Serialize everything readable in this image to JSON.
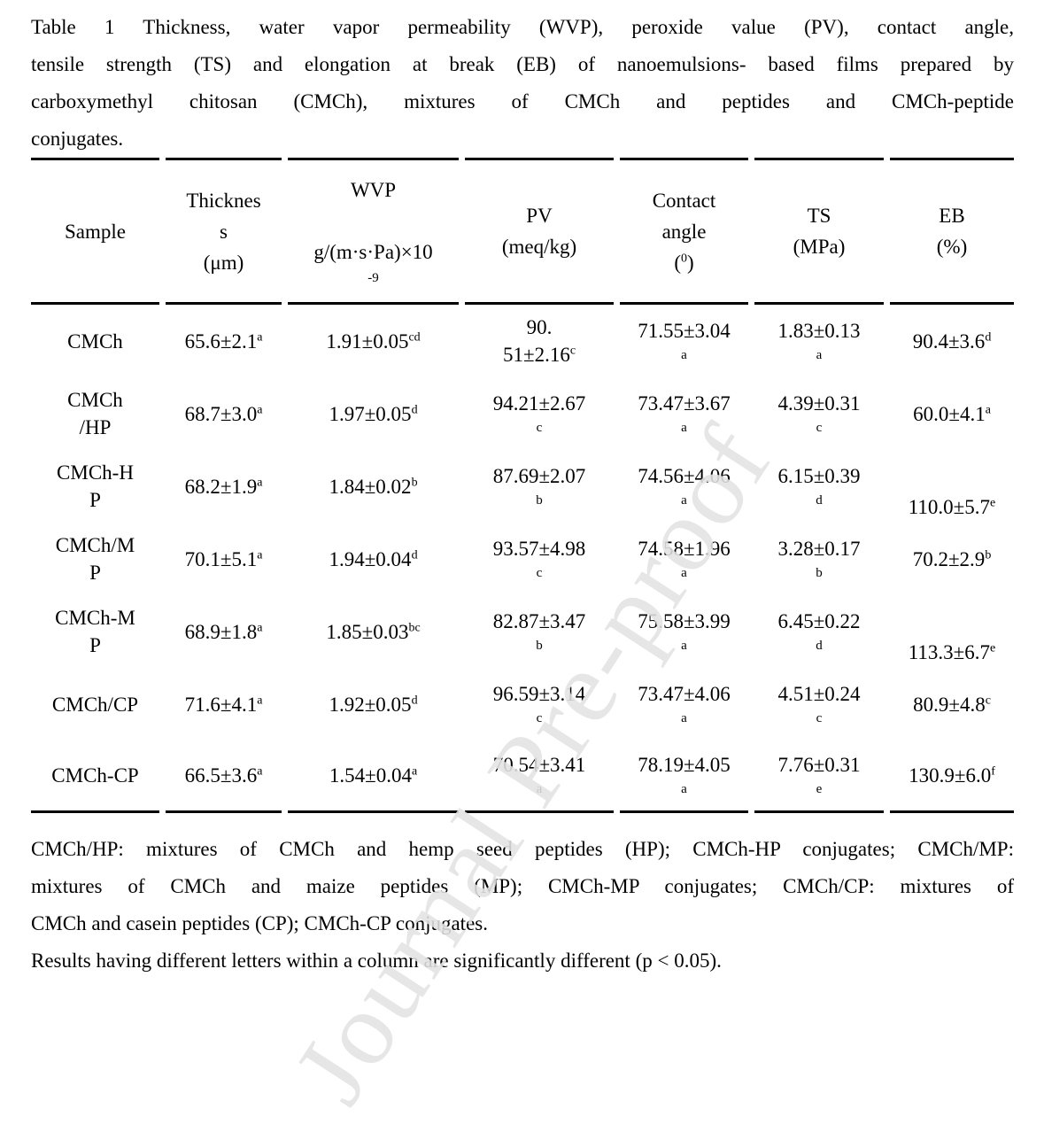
{
  "watermark": {
    "text": "Journal Pre-proof",
    "color": "#e2e2e2"
  },
  "caption": {
    "lines": [
      "Table 1 Thickness, water vapor permeability (WVP), peroxide value (PV), contact angle,",
      "tensile strength (TS) and elongation at break (EB) of nanoemulsions- based films prepared by",
      "carboxymethyl chitosan (CMCh), mixtures of CMCh and peptides and CMCh-peptide",
      "conjugates."
    ]
  },
  "table": {
    "columns": [
      {
        "name": "sample",
        "lines": [
          {
            "t": "Sample"
          }
        ]
      },
      {
        "name": "thickness",
        "lines": [
          {
            "t": "Thicknes"
          },
          {
            "t": "s"
          },
          {
            "t": "(μm)"
          }
        ]
      },
      {
        "name": "wvp",
        "lines": [
          {
            "t": "WVP"
          },
          {
            "t": " "
          },
          {
            "t": "g/(m·s·Pa)×10"
          },
          {
            "small": "-9"
          }
        ]
      },
      {
        "name": "pv",
        "lines": [
          {
            "t": "PV"
          },
          {
            "t": "(meq/kg)"
          }
        ]
      },
      {
        "name": "contact-angle",
        "lines": [
          {
            "t": "Contact"
          },
          {
            "t": "angle"
          },
          {
            "t": "(",
            "s": "0",
            "t2": ")"
          }
        ]
      },
      {
        "name": "ts",
        "lines": [
          {
            "t": "TS"
          },
          {
            "t": "(MPa)"
          }
        ]
      },
      {
        "name": "eb",
        "lines": [
          {
            "t": "EB"
          },
          {
            "t": "(%)"
          }
        ]
      }
    ],
    "rows": [
      {
        "cells": [
          {
            "lines": [
              {
                "t": "CMCh"
              }
            ]
          },
          {
            "lines": [
              {
                "t": "65.6±2.1",
                "s": "a"
              }
            ]
          },
          {
            "lines": [
              {
                "t": "1.91±0.05",
                "s": "cd"
              }
            ]
          },
          {
            "lines": [
              {
                "t": "90."
              },
              {
                "t": "51±2.16",
                "s": "c"
              }
            ]
          },
          {
            "lines": [
              {
                "t": "71.55±3.04"
              },
              {
                "small": "a"
              }
            ]
          },
          {
            "lines": [
              {
                "t": "1.83±0.13"
              },
              {
                "small": "a"
              }
            ]
          },
          {
            "lines": [
              {
                "t": "90.4±3.6",
                "s": "d"
              }
            ]
          }
        ]
      },
      {
        "cells": [
          {
            "lines": [
              {
                "t": "CMCh"
              },
              {
                "t": "/HP"
              }
            ]
          },
          {
            "lines": [
              {
                "t": "68.7±3.0",
                "s": "a"
              }
            ]
          },
          {
            "lines": [
              {
                "t": "1.97±0.05",
                "s": "d"
              }
            ]
          },
          {
            "lines": [
              {
                "t": "94.21±2.67"
              },
              {
                "small": "c"
              }
            ]
          },
          {
            "lines": [
              {
                "t": "73.47±3.67"
              },
              {
                "small": "a"
              }
            ]
          },
          {
            "lines": [
              {
                "t": "4.39±0.31"
              },
              {
                "small": "c"
              }
            ]
          },
          {
            "lines": [
              {
                "t": "60.0±4.1",
                "s": "a"
              }
            ]
          }
        ]
      },
      {
        "cells": [
          {
            "lines": [
              {
                "t": "CMCh-H"
              },
              {
                "t": "P"
              }
            ]
          },
          {
            "lines": [
              {
                "t": "68.2±1.9",
                "s": "a"
              }
            ]
          },
          {
            "lines": [
              {
                "t": "1.84±0.02",
                "s": "b"
              }
            ]
          },
          {
            "lines": [
              {
                "t": "87.69±2.07"
              },
              {
                "small": "b"
              }
            ]
          },
          {
            "lines": [
              {
                "t": "74.56±4.06"
              },
              {
                "small": "a"
              }
            ]
          },
          {
            "lines": [
              {
                "t": "6.15±0.39"
              },
              {
                "small": "d"
              }
            ]
          },
          {
            "align": "end",
            "lines": [
              {
                "t": "110.0±5.7",
                "s": "e"
              }
            ]
          }
        ]
      },
      {
        "cells": [
          {
            "lines": [
              {
                "t": "CMCh/M"
              },
              {
                "t": "P"
              }
            ]
          },
          {
            "lines": [
              {
                "t": "70.1±5.1",
                "s": "a"
              }
            ]
          },
          {
            "lines": [
              {
                "t": "1.94±0.04",
                "s": "d"
              }
            ]
          },
          {
            "lines": [
              {
                "t": "93.57±4.98"
              },
              {
                "small": "c"
              }
            ]
          },
          {
            "lines": [
              {
                "t": "74.58±1.96"
              },
              {
                "small": "a"
              }
            ]
          },
          {
            "lines": [
              {
                "t": "3.28±0.17"
              },
              {
                "small": "b"
              }
            ]
          },
          {
            "lines": [
              {
                "t": "70.2±2.9",
                "s": "b"
              }
            ]
          }
        ]
      },
      {
        "cells": [
          {
            "lines": [
              {
                "t": "CMCh-M"
              },
              {
                "t": "P"
              }
            ]
          },
          {
            "lines": [
              {
                "t": "68.9±1.8",
                "s": "a"
              }
            ]
          },
          {
            "lines": [
              {
                "t": "1.85±0.03",
                "s": "bc"
              }
            ]
          },
          {
            "lines": [
              {
                "t": "82.87±3.47"
              },
              {
                "small": "b"
              }
            ]
          },
          {
            "lines": [
              {
                "t": "75.58±3.99"
              },
              {
                "small": "a"
              }
            ]
          },
          {
            "lines": [
              {
                "t": "6.45±0.22"
              },
              {
                "small": "d"
              }
            ]
          },
          {
            "align": "end",
            "lines": [
              {
                "t": "113.3±6.7",
                "s": "e"
              }
            ]
          }
        ]
      },
      {
        "cells": [
          {
            "lines": [
              {
                "t": "CMCh/CP"
              }
            ]
          },
          {
            "lines": [
              {
                "t": "71.6±4.1",
                "s": "a"
              }
            ]
          },
          {
            "lines": [
              {
                "t": "1.92±0.05",
                "s": "d"
              }
            ]
          },
          {
            "lines": [
              {
                "t": "96.59±3.14"
              },
              {
                "small": "c"
              }
            ]
          },
          {
            "lines": [
              {
                "t": "73.47±4.06"
              },
              {
                "small": "a"
              }
            ]
          },
          {
            "lines": [
              {
                "t": "4.51±0.24"
              },
              {
                "small": "c"
              }
            ]
          },
          {
            "lines": [
              {
                "t": "80.9±4.8",
                "s": "c"
              }
            ]
          }
        ]
      },
      {
        "cells": [
          {
            "lines": [
              {
                "t": "CMCh-CP"
              }
            ]
          },
          {
            "lines": [
              {
                "t": "66.5±3.6",
                "s": "a"
              }
            ]
          },
          {
            "lines": [
              {
                "t": "1.54±0.04",
                "s": "a"
              }
            ]
          },
          {
            "lines": [
              {
                "t": "70.54±3.41"
              },
              {
                "small": "a"
              }
            ]
          },
          {
            "lines": [
              {
                "t": "78.19±4.05"
              },
              {
                "small": "a"
              }
            ]
          },
          {
            "lines": [
              {
                "t": "7.76±0.31"
              },
              {
                "small": "e"
              }
            ]
          },
          {
            "lines": [
              {
                "t": "130.9±6.0",
                "s": "f"
              }
            ]
          }
        ]
      }
    ]
  },
  "footnotes": {
    "lines": [
      {
        "text": "CMCh/HP: mixtures of CMCh and hemp seed peptides (HP); CMCh-HP conjugates; CMCh/MP:",
        "justify": true
      },
      {
        "text": "mixtures of CMCh and maize peptides (MP); CMCh-MP conjugates; CMCh/CP: mixtures of",
        "justify": true
      },
      {
        "text": "CMCh and casein peptides (CP); CMCh-CP conjugates.",
        "justify": false
      },
      {
        "text": "Results having different letters within a column are significantly different (p < 0.05).",
        "justify": false
      }
    ]
  }
}
